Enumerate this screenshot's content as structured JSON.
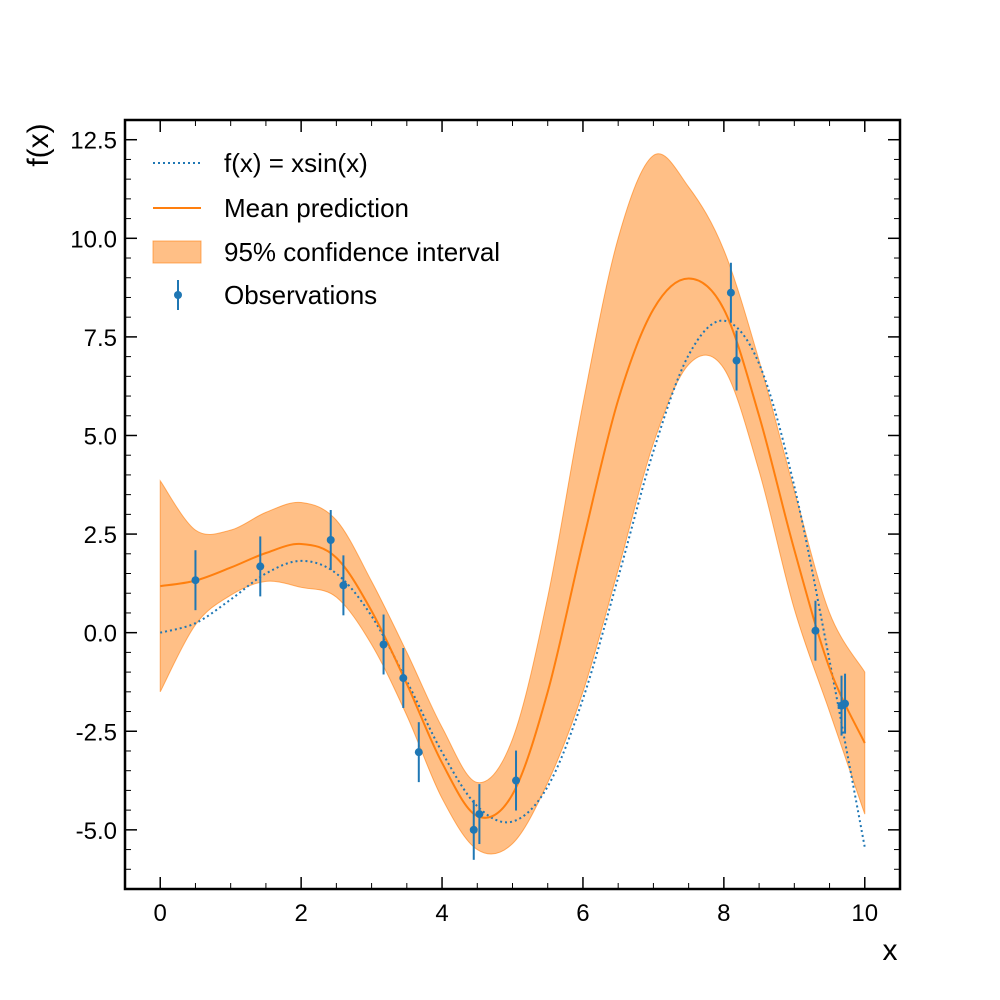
{
  "chart_data": {
    "type": "line",
    "title": "",
    "xlabel": "x",
    "ylabel": "f(x)",
    "xlim": [
      -0.5,
      10.5
    ],
    "ylim": [
      -6.5,
      13.0
    ],
    "grid": false,
    "legend_position": "top-left",
    "x_ticks": [
      0,
      2,
      4,
      6,
      8,
      10
    ],
    "x_tick_labels": [
      "0",
      "2",
      "4",
      "6",
      "8",
      "10"
    ],
    "y_ticks": [
      -5.0,
      -2.5,
      0.0,
      2.5,
      5.0,
      7.5,
      10.0,
      12.5
    ],
    "y_tick_labels": [
      "-5.0",
      "-2.5",
      "0.0",
      "2.5",
      "5.0",
      "7.5",
      "10.0",
      "12.5"
    ],
    "colors": {
      "true_function": "#1f77b4",
      "mean": "#ff7f0e",
      "band": "#ff7f0e",
      "observations": "#1f77b4"
    },
    "series": [
      {
        "name": "f(x) = xsin(x)",
        "kind": "line-dotted",
        "x": [
          0,
          0.5,
          1,
          1.5,
          2,
          2.5,
          3,
          3.5,
          4,
          4.5,
          5,
          5.5,
          6,
          6.5,
          7,
          7.5,
          8,
          8.5,
          9,
          9.5,
          10
        ],
        "y": [
          0,
          0.24,
          0.84,
          1.5,
          1.82,
          1.5,
          0.42,
          -1.23,
          -3.03,
          -4.4,
          -4.79,
          -3.9,
          -1.68,
          1.4,
          4.6,
          7.04,
          7.91,
          6.82,
          3.71,
          -0.71,
          -5.44
        ]
      },
      {
        "name": "Mean prediction",
        "kind": "line",
        "x": [
          0,
          0.5,
          1,
          1.5,
          2,
          2.5,
          3,
          3.5,
          4,
          4.5,
          5,
          5.5,
          6,
          6.5,
          7,
          7.5,
          8,
          8.5,
          9,
          9.5,
          10
        ],
        "y": [
          1.18,
          1.32,
          1.65,
          2.02,
          2.25,
          1.9,
          0.55,
          -1.3,
          -3.3,
          -4.65,
          -4.1,
          -1.5,
          2.3,
          5.9,
          8.2,
          8.98,
          8.2,
          5.5,
          2.1,
          -0.9,
          -2.8
        ]
      },
      {
        "name": "95% confidence interval",
        "kind": "band",
        "x": [
          0,
          0.5,
          1,
          1.5,
          2,
          2.5,
          3,
          3.5,
          4,
          4.5,
          5,
          5.5,
          6,
          6.5,
          7,
          7.5,
          8,
          8.5,
          9,
          9.5,
          10
        ],
        "lower": [
          -1.5,
          0.2,
          0.95,
          1.3,
          1.15,
          0.9,
          -0.3,
          -2.1,
          -4.2,
          -5.5,
          -5.35,
          -3.8,
          -1.5,
          1.6,
          4.8,
          6.8,
          6.7,
          4.1,
          0.6,
          -2.0,
          -4.6
        ],
        "upper": [
          3.85,
          2.6,
          2.6,
          3.05,
          3.3,
          2.85,
          1.3,
          -0.5,
          -2.4,
          -3.8,
          -2.7,
          0.9,
          5.8,
          10.0,
          12.1,
          11.3,
          9.7,
          6.9,
          3.6,
          0.5,
          -1.0
        ]
      },
      {
        "name": "Observations",
        "kind": "errorbar",
        "x": [
          0.5,
          1.42,
          2.42,
          2.6,
          3.17,
          3.45,
          3.67,
          4.45,
          4.53,
          5.05,
          8.1,
          8.18,
          9.3,
          9.67,
          9.72
        ],
        "y": [
          1.33,
          1.68,
          2.35,
          1.2,
          -0.3,
          -1.15,
          -3.03,
          -5.0,
          -4.6,
          -3.75,
          8.62,
          6.9,
          0.05,
          -1.85,
          -1.8
        ],
        "err": [
          0.76,
          0.76,
          0.76,
          0.76,
          0.76,
          0.76,
          0.76,
          0.76,
          0.76,
          0.76,
          0.76,
          0.76,
          0.76,
          0.76,
          0.76
        ]
      }
    ]
  }
}
